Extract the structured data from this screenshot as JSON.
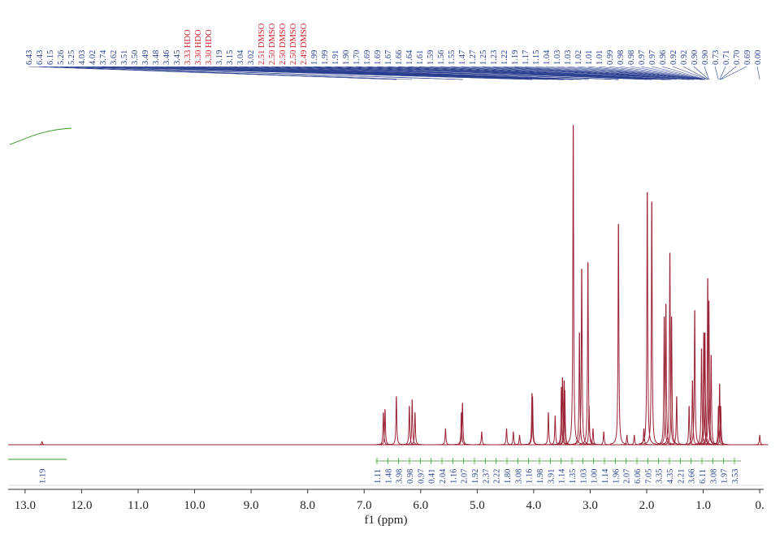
{
  "chart_data": {
    "type": "nmr",
    "x_label": "f1 (ppm)",
    "xlim": [
      13.3,
      -0.07
    ],
    "xticks": [
      {
        "value": 13,
        "label": "13.0"
      },
      {
        "value": 12,
        "label": "12.0"
      },
      {
        "value": 11,
        "label": "11.0"
      },
      {
        "value": 10,
        "label": "10.0"
      },
      {
        "value": 9,
        "label": "9.0"
      },
      {
        "value": 8,
        "label": "8.0"
      },
      {
        "value": 7,
        "label": "7.0"
      },
      {
        "value": 6,
        "label": "6.0"
      },
      {
        "value": 5,
        "label": "5.0"
      },
      {
        "value": 4,
        "label": "4.0"
      },
      {
        "value": 3,
        "label": "3.0"
      },
      {
        "value": 2,
        "label": "2.0"
      },
      {
        "value": 1,
        "label": "1.0"
      },
      {
        "value": 0,
        "label": "0."
      }
    ],
    "ylim": [
      0,
      100
    ],
    "color": "#9b2335",
    "peaks": {
      "x": [
        12.7,
        6.66,
        6.63,
        6.43,
        6.2,
        6.15,
        6.1,
        5.56,
        5.28,
        5.26,
        4.92,
        4.48,
        4.36,
        4.25,
        4.03,
        4.02,
        3.74,
        3.62,
        3.51,
        3.49,
        3.46,
        3.45,
        3.3,
        3.19,
        3.15,
        3.04,
        3.02,
        2.95,
        2.76,
        2.5,
        2.35,
        2.22,
        2.05,
        1.99,
        1.91,
        1.69,
        1.66,
        1.59,
        1.56,
        1.47,
        1.25,
        1.19,
        1.15,
        1.03,
        0.99,
        0.97,
        0.92,
        0.9,
        0.86,
        0.73,
        0.71,
        0.69,
        0.0
      ],
      "values": [
        1,
        10,
        11,
        15,
        12,
        14,
        10,
        5,
        10,
        13,
        4,
        5,
        4,
        3,
        16,
        15,
        10,
        9,
        18,
        21,
        20,
        17,
        100,
        35,
        55,
        57,
        12,
        5,
        4,
        69,
        3,
        3,
        5,
        79,
        76,
        40,
        44,
        60,
        40,
        15,
        12,
        20,
        42,
        30,
        35,
        35,
        52,
        45,
        28,
        12,
        19,
        12,
        3
      ]
    },
    "peak_labels": [
      "6.43",
      "6.43",
      "6.15",
      "5.26",
      "5.25",
      "4.03",
      "4.02",
      "3.74",
      "3.62",
      "3.51",
      "3.50",
      "3.49",
      "3.48",
      "3.46",
      "3.45",
      "3.33 HDO",
      "3.30 HDO",
      "3.30 HDO",
      "3.19",
      "3.15",
      "3.04",
      "3.02",
      "2.51 DMSO",
      "2.50 DMSO",
      "2.50 DMSO",
      "2.50 DMSO",
      "2.49 DMSO",
      "1.99",
      "1.99",
      "1.91",
      "1.90",
      "1.70",
      "1.69",
      "1.69",
      "1.67",
      "1.66",
      "1.64",
      "1.61",
      "1.59",
      "1.56",
      "1.55",
      "1.47",
      "1.27",
      "1.25",
      "1.23",
      "1.22",
      "1.19",
      "1.17",
      "1.15",
      "1.04",
      "1.03",
      "1.03",
      "1.02",
      "1.01",
      "1.01",
      "0.99",
      "0.98",
      "0.98",
      "0.97",
      "0.97",
      "0.96",
      "0.92",
      "0.92",
      "0.90",
      "0.90",
      "0.73",
      "0.71",
      "0.70",
      "0.69",
      "0.00"
    ],
    "integrals": [
      "1.19",
      "1.11",
      "1.48",
      "3.98",
      "0.98",
      "0.97",
      "0.41",
      "2.04",
      "1.16",
      "2.07",
      "1.92",
      "2.37",
      "2.22",
      "1.80",
      "3.08",
      "1.16",
      "1.98",
      "3.91",
      "1.14",
      "1.35",
      "1.03",
      "1.00",
      "1.14",
      "1.96",
      "2.07",
      "6.06",
      "7.05",
      "3.35",
      "4.35",
      "2.21",
      "3.66",
      "6.11",
      "3.08",
      "1.97",
      "3.53"
    ]
  }
}
